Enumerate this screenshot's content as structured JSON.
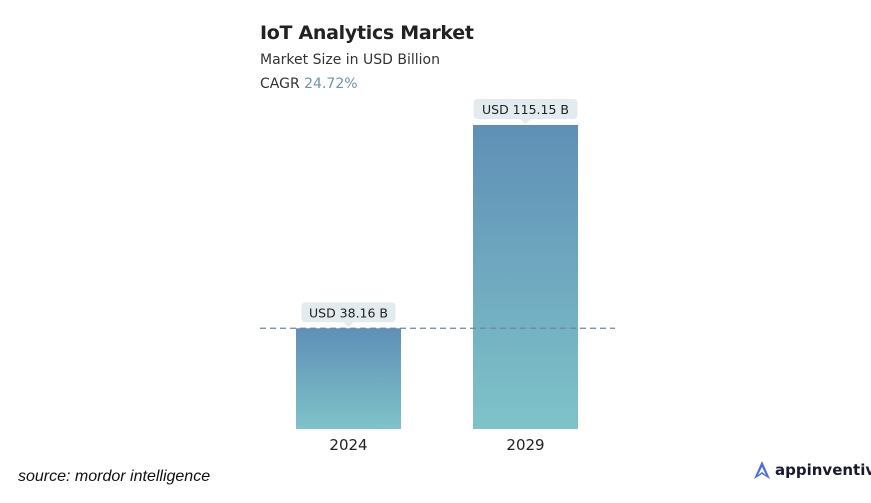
{
  "chart_data": {
    "type": "bar",
    "title": "IoT Analytics Market",
    "subtitle": "Market Size in USD Billion",
    "cagr_label": "CAGR",
    "cagr_value": "24.72%",
    "categories": [
      "2024",
      "2029"
    ],
    "values": [
      38.16,
      115.15
    ],
    "data_labels": [
      "USD 38.16 B",
      "USD 115.15 B"
    ],
    "reference_line": 38.16,
    "ylim": [
      0,
      115.15
    ],
    "colors": {
      "bar_top": "#5f8fb6",
      "bar_bottom": "#7fc3c9",
      "label_bg": "#e3ebef",
      "dash": "#6b88a3"
    }
  },
  "source": "source: mordor intelligence",
  "brand": "appinventiv"
}
